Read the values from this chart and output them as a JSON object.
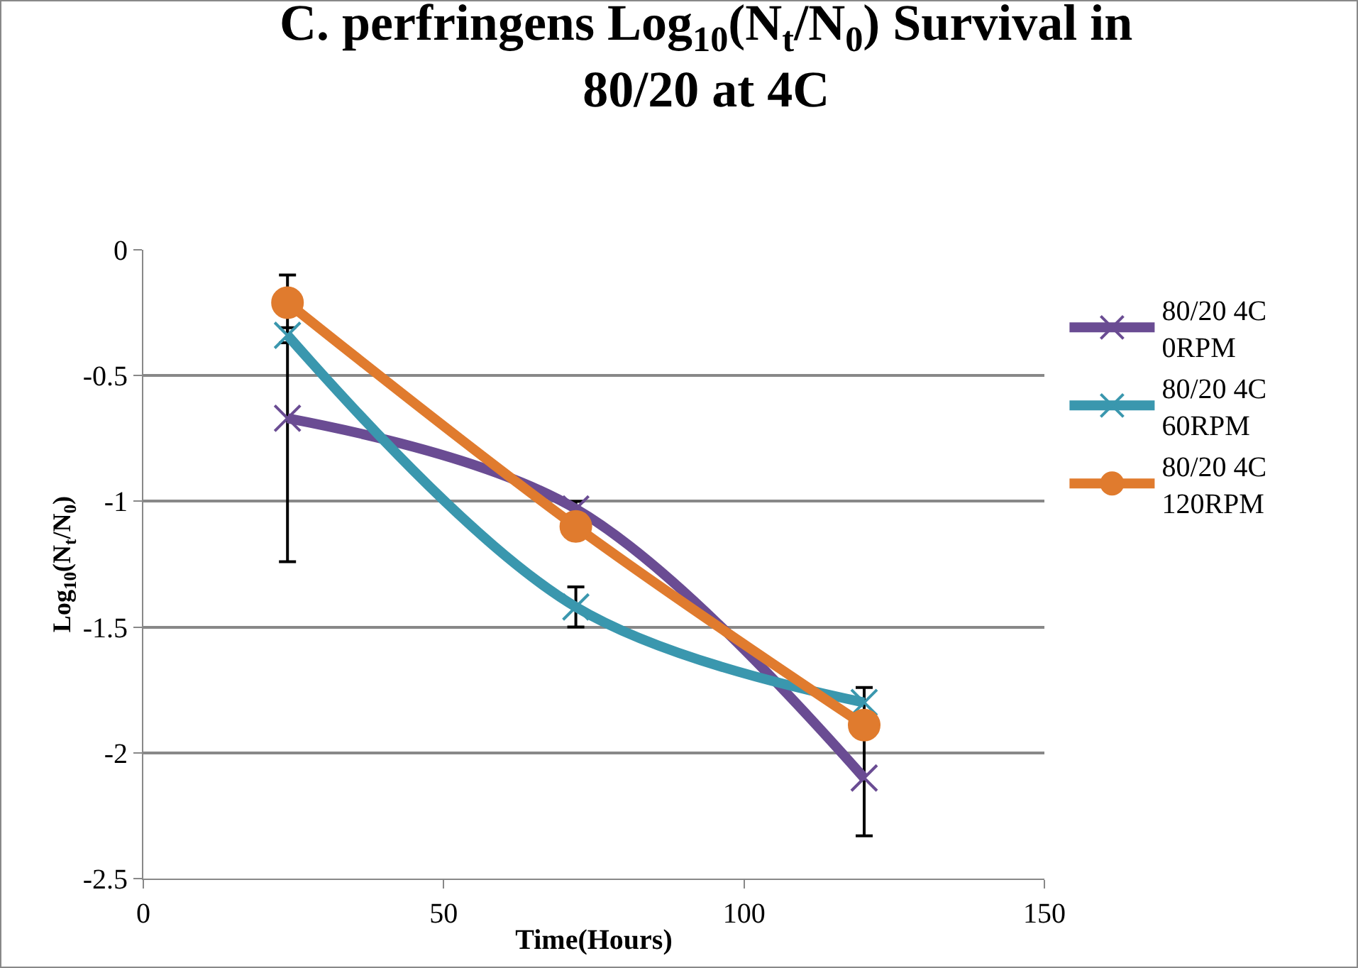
{
  "chart_data": {
    "type": "line",
    "title": "C. perfringens Log$_{10}$(N$_{t}$/N$_{0}$) Survival in 80/20 at 4C",
    "xlabel": "Time(Hours)",
    "ylabel": "Log$_{10}$(N$_{t}$/N$_{0}$)",
    "x": [
      24,
      72,
      120
    ],
    "series": [
      {
        "name": "80/20 4C 0RPM",
        "color": "#6a4c93",
        "marker": "cross",
        "values": [
          -0.67,
          -1.03,
          -2.1
        ],
        "errors": [
          0.57,
          0.03,
          0.23
        ]
      },
      {
        "name": "80/20 4C 60RPM",
        "color": "#3a97ae",
        "marker": "cross",
        "values": [
          -0.34,
          -1.42,
          -1.8
        ],
        "errors": [
          0.03,
          0.08,
          0.06
        ]
      },
      {
        "name": "80/20 4C 120RPM",
        "color": "#e07b2e",
        "marker": "circle",
        "values": [
          -0.21,
          -1.1,
          -1.89
        ]
      }
    ],
    "xlim": [
      0,
      150
    ],
    "xticks": [
      0,
      50,
      100,
      150
    ],
    "ylim": [
      -2.5,
      0
    ],
    "yticks": [
      0,
      -0.5,
      -1,
      -1.5,
      -2,
      -2.5
    ],
    "grid": "y",
    "legend": "right"
  }
}
